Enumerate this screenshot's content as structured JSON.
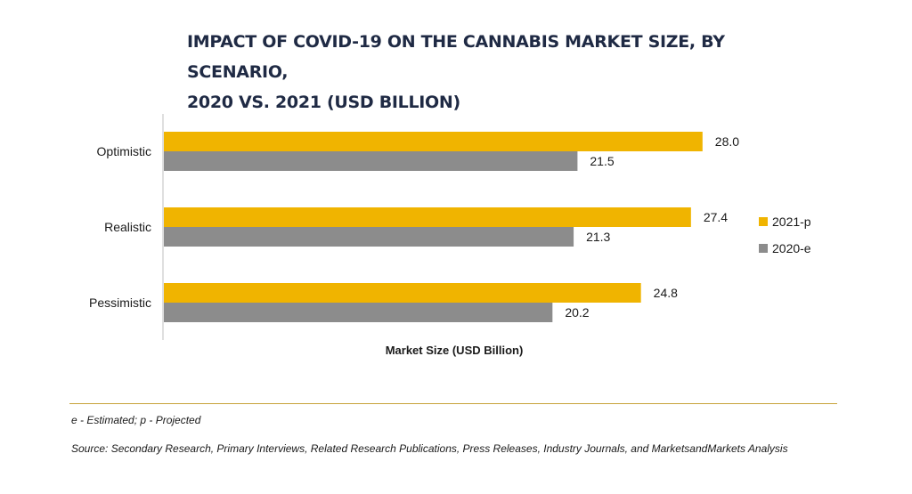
{
  "chart_data": {
    "type": "bar",
    "orientation": "horizontal",
    "title_lines": [
      "IMPACT OF COVID-19 ON THE CANNABIS MARKET SIZE, BY SCENARIO,",
      "2020 VS. 2021 (USD BILLION)"
    ],
    "categories": [
      "Optimistic",
      "Realistic",
      "Pessimistic"
    ],
    "series": [
      {
        "name": "2021-p",
        "color": "#f0b400",
        "values": [
          28.0,
          27.4,
          24.8
        ]
      },
      {
        "name": "2020-e",
        "color": "#8c8c8c",
        "values": [
          21.5,
          21.3,
          20.2
        ]
      }
    ],
    "value_labels": {
      "2021-p": [
        "28.0",
        "27.4",
        "24.8"
      ],
      "2020-e": [
        "21.5",
        "21.3",
        "20.2"
      ]
    },
    "xlabel": "Market Size (USD Billion)",
    "ylabel": "",
    "xlim": [
      0,
      30
    ],
    "grid": false,
    "legend_position": "right"
  },
  "footnote": "e - Estimated; p - Projected",
  "source": "Source: Secondary Research, Primary Interviews, Related Research Publications, Press Releases, Industry Journals, and MarketsandMarkets Analysis"
}
